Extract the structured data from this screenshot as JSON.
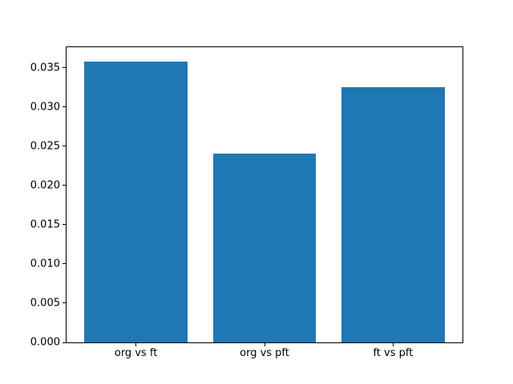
{
  "chart_data": {
    "type": "bar",
    "title": "",
    "xlabel": "",
    "ylabel": "",
    "categories": [
      "org vs ft",
      "org vs pft",
      "ft vs pft"
    ],
    "values": [
      0.0358,
      0.0241,
      0.0325
    ],
    "ytick_labels": [
      "0.000",
      "0.005",
      "0.010",
      "0.015",
      "0.020",
      "0.025",
      "0.030",
      "0.035"
    ],
    "ytick_values": [
      0.0,
      0.005,
      0.01,
      0.015,
      0.02,
      0.025,
      0.03,
      0.035
    ],
    "ylim": [
      0,
      0.0376
    ],
    "xlim": [
      -0.54,
      2.54
    ],
    "bar_width_fraction": 0.8,
    "grid": false,
    "legend": null,
    "bar_color": "#1f77b4",
    "spine_color": "#000000",
    "background_color": "#ffffff"
  }
}
